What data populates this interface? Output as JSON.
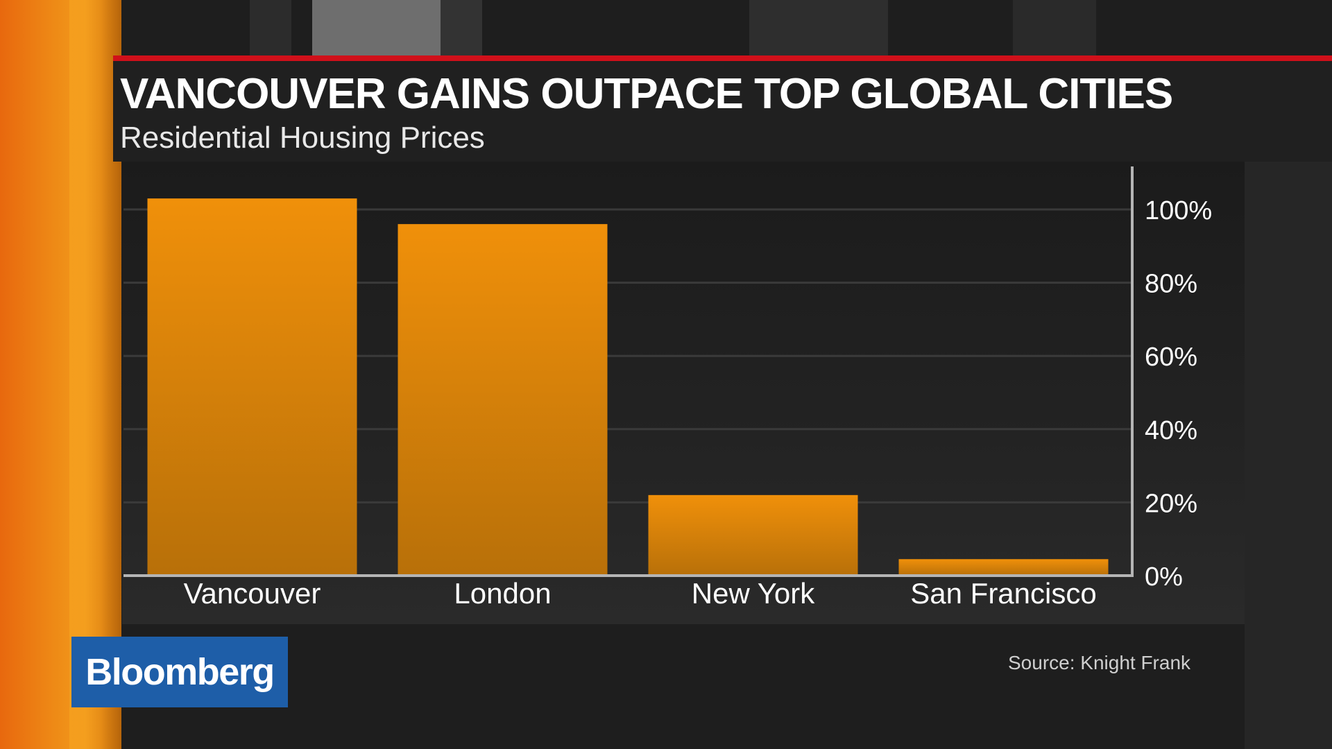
{
  "header": {
    "title": "VANCOUVER GAINS OUTPACE TOP GLOBAL CITIES",
    "subtitle": "Residential Housing Prices"
  },
  "brand": {
    "label": "Bloomberg"
  },
  "source": "Source: Knight Frank",
  "colors": {
    "accent_bar": "#d0101a",
    "bar_top": "#f0900a",
    "bar_bottom": "#b87009",
    "brand_blue": "#1e5ea8"
  },
  "chart_data": {
    "type": "bar",
    "title": "VANCOUVER GAINS OUTPACE TOP GLOBAL CITIES",
    "subtitle": "Residential Housing Prices",
    "categories": [
      "Vancouver",
      "London",
      "New York",
      "San Francisco"
    ],
    "values": [
      103,
      96,
      22,
      4.5
    ],
    "unit": "%",
    "ylim": [
      0,
      100
    ],
    "yticks": [
      0,
      20,
      40,
      60,
      80,
      100
    ],
    "ytick_labels": [
      "0%",
      "20%",
      "40%",
      "60%",
      "80%",
      "100%"
    ],
    "y_axis_side": "right",
    "grid": true,
    "legend": "none"
  }
}
